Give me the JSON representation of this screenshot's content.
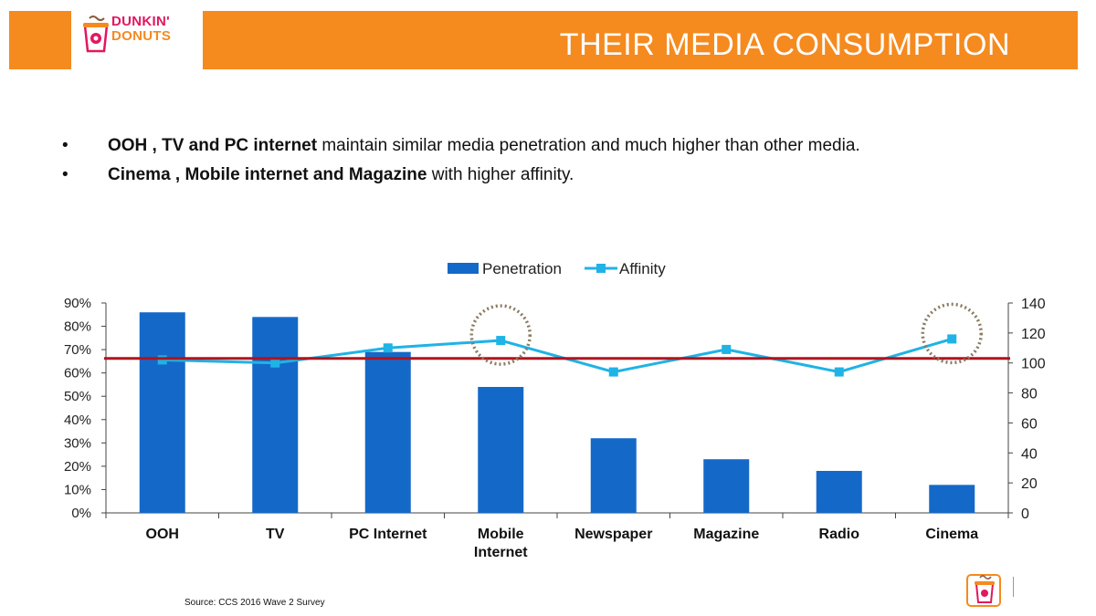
{
  "header": {
    "brand_line1": "DUNKIN'",
    "brand_line2": "DONUTS",
    "title": "THEIR MEDIA CONSUMPTION"
  },
  "bullets": [
    {
      "symbol": "•",
      "bold": "OOH , TV and PC internet",
      "text": " maintain similar media penetration and much higher than other media."
    },
    {
      "symbol": "•",
      "bold": "Cinema , Mobile internet and Magazine",
      "text": " with higher affinity."
    }
  ],
  "source": "Source: CCS 2016 Wave 2 Survey",
  "colors": {
    "header_orange": "#f58a1f",
    "bar_blue": "#1469c8",
    "line_cyan": "#1fb3e6",
    "reference_red": "#b0141e",
    "circle_brown": "#8a7a62"
  },
  "chart_data": {
    "type": "bar",
    "title": "",
    "categories": [
      "OOH",
      "TV",
      "PC Internet",
      "Mobile Internet",
      "Newspaper",
      "Magazine",
      "Radio",
      "Cinema"
    ],
    "category_lines": [
      [
        "OOH"
      ],
      [
        "TV"
      ],
      [
        "PC Internet"
      ],
      [
        "Mobile",
        "Internet"
      ],
      [
        "Newspaper"
      ],
      [
        "Magazine"
      ],
      [
        "Radio"
      ],
      [
        "Cinema"
      ]
    ],
    "series": [
      {
        "name": "Penetration",
        "type": "bar",
        "axis": "left",
        "values": [
          86,
          84,
          69,
          54,
          32,
          23,
          18,
          12
        ]
      },
      {
        "name": "Affinity",
        "type": "line",
        "axis": "right",
        "values": [
          102,
          100,
          110,
          115,
          94,
          109,
          94,
          116
        ]
      }
    ],
    "y_left": {
      "min": 0,
      "max": 90,
      "step": 10,
      "format": "percent",
      "ticks": [
        "0%",
        "10%",
        "20%",
        "30%",
        "40%",
        "50%",
        "60%",
        "70%",
        "80%",
        "90%"
      ]
    },
    "y_right": {
      "min": 0,
      "max": 140,
      "step": 20,
      "ticks": [
        "0",
        "20",
        "40",
        "60",
        "80",
        "100",
        "120",
        "140"
      ]
    },
    "reference_line": {
      "axis": "right",
      "value": 103
    },
    "highlighted_categories": [
      "Mobile Internet",
      "Cinema"
    ],
    "legend": {
      "position": "top",
      "entries": [
        "Penetration",
        "Affinity"
      ]
    },
    "grid": false
  }
}
